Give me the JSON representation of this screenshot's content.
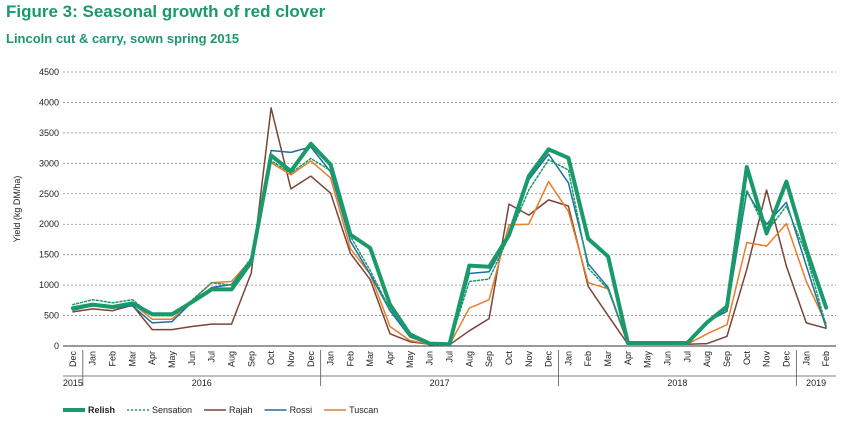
{
  "title": "Figure 3: Seasonal growth of red clover",
  "subtitle": "Lincoln cut & carry, sown spring 2015",
  "colors": {
    "accent": "#1a9a6a"
  },
  "chart_data": {
    "type": "line",
    "title": "Figure 3: Seasonal growth of red clover",
    "subtitle": "Lincoln cut & carry, sown spring 2015",
    "ylabel": "Yield (kg DM/ha)",
    "ylim": [
      0,
      4500
    ],
    "yticks": [
      0,
      500,
      1000,
      1500,
      2000,
      2500,
      3000,
      3500,
      4000,
      4500
    ],
    "grid": true,
    "legend": "bottom-left",
    "categories": [
      "Dec",
      "Jan",
      "Feb",
      "Mar",
      "Apr",
      "May",
      "Jun",
      "Jul",
      "Aug",
      "Sep",
      "Oct",
      "Nov",
      "Dec",
      "Jan",
      "Feb",
      "Mar",
      "Apr",
      "May",
      "Jun",
      "Jul",
      "Aug",
      "Sep",
      "Oct",
      "Nov",
      "Dec",
      "Jan",
      "Feb",
      "Mar",
      "Apr",
      "May",
      "Jun",
      "Jul",
      "Aug",
      "Sep",
      "Oct",
      "Nov",
      "Dec",
      "Jan",
      "Feb"
    ],
    "years": [
      {
        "label": "2015",
        "start": 0,
        "end": 0
      },
      {
        "label": "2016",
        "start": 1,
        "end": 12
      },
      {
        "label": "2017",
        "start": 13,
        "end": 24
      },
      {
        "label": "2018",
        "start": 25,
        "end": 36
      },
      {
        "label": "2019",
        "start": 37,
        "end": 38
      }
    ],
    "series": [
      {
        "name": "Relish",
        "color": "#1a9a6a",
        "style": "bold",
        "values": [
          620,
          680,
          640,
          700,
          520,
          520,
          720,
          930,
          930,
          1380,
          3130,
          2870,
          3320,
          2980,
          1830,
          1610,
          680,
          190,
          40,
          30,
          1320,
          1300,
          1820,
          2790,
          3230,
          3090,
          1760,
          1470,
          50,
          50,
          50,
          50,
          390,
          650,
          2940,
          1850,
          2700,
          1590,
          630
        ]
      },
      {
        "name": "Sensation",
        "color": "#1a9a6a",
        "style": "dotted",
        "values": [
          680,
          760,
          710,
          760,
          500,
          500,
          750,
          1040,
          1000,
          1450,
          3040,
          2840,
          3080,
          2880,
          1800,
          1240,
          600,
          220,
          40,
          30,
          1060,
          1100,
          1800,
          2560,
          3060,
          2890,
          1280,
          930,
          50,
          50,
          50,
          50,
          400,
          600,
          2560,
          1870,
          2300,
          1500,
          330
        ]
      },
      {
        "name": "Rajah",
        "color": "#7a4535",
        "style": "solid",
        "values": [
          560,
          610,
          580,
          670,
          270,
          270,
          320,
          360,
          360,
          1200,
          3910,
          2580,
          2790,
          2510,
          1520,
          1090,
          200,
          70,
          30,
          20,
          250,
          450,
          2330,
          2150,
          2400,
          2300,
          980,
          500,
          30,
          30,
          30,
          30,
          40,
          160,
          1260,
          2560,
          1310,
          380,
          290
        ]
      },
      {
        "name": "Rossi",
        "color": "#1f6ea1",
        "style": "solid",
        "values": [
          590,
          660,
          620,
          660,
          380,
          400,
          720,
          960,
          1010,
          1400,
          3210,
          3180,
          3270,
          2860,
          1720,
          1180,
          580,
          150,
          30,
          30,
          1190,
          1220,
          1790,
          2730,
          3150,
          2680,
          1350,
          960,
          40,
          40,
          40,
          40,
          400,
          570,
          2530,
          2000,
          2360,
          1320,
          300
        ]
      },
      {
        "name": "Tuscan",
        "color": "#e87d2a",
        "style": "solid",
        "values": [
          600,
          660,
          630,
          700,
          440,
          440,
          740,
          1040,
          1060,
          1420,
          3010,
          2810,
          3040,
          2760,
          1600,
          1180,
          320,
          90,
          30,
          20,
          620,
          760,
          1990,
          2000,
          2700,
          2210,
          1040,
          940,
          30,
          30,
          30,
          30,
          200,
          350,
          1700,
          1640,
          2010,
          1060,
          370
        ]
      }
    ]
  }
}
